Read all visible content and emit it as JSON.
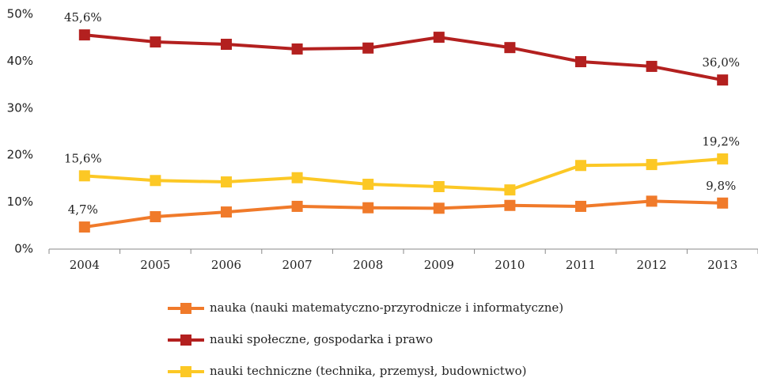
{
  "chart_data": {
    "type": "line",
    "categories": [
      "2004",
      "2005",
      "2006",
      "2007",
      "2008",
      "2009",
      "2010",
      "2011",
      "2012",
      "2013"
    ],
    "series": [
      {
        "name": "nauka (nauki matematyczno-przyrodnicze i informatyczne)",
        "color": "#f07a2a",
        "values": [
          4.7,
          6.9,
          7.9,
          9.1,
          8.8,
          8.7,
          9.3,
          9.1,
          10.2,
          9.8
        ],
        "value_labels": [
          "4,7%",
          null,
          null,
          null,
          null,
          null,
          null,
          null,
          null,
          "9,8%"
        ]
      },
      {
        "name": "nauki społeczne, gospodarka i prawo",
        "color": "#b3201f",
        "values": [
          45.6,
          44.1,
          43.6,
          42.6,
          42.8,
          45.1,
          42.9,
          39.9,
          38.9,
          36.0
        ],
        "value_labels": [
          "45,6%",
          null,
          null,
          null,
          null,
          null,
          null,
          null,
          null,
          "36,0%"
        ]
      },
      {
        "name": "nauki techniczne (technika, przemysł, budownictwo)",
        "color": "#fcc825",
        "values": [
          15.6,
          14.6,
          14.3,
          15.2,
          13.8,
          13.3,
          12.6,
          17.8,
          18.0,
          19.2
        ],
        "value_labels": [
          "15,6%",
          null,
          null,
          null,
          null,
          null,
          null,
          null,
          null,
          "19,2%"
        ]
      }
    ],
    "ylim": [
      0,
      50
    ],
    "yticks": [
      {
        "value": 0,
        "label": "0%"
      },
      {
        "value": 10,
        "label": "10%"
      },
      {
        "value": 20,
        "label": "20%"
      },
      {
        "value": 30,
        "label": "30%"
      },
      {
        "value": 40,
        "label": "40%"
      },
      {
        "value": 50,
        "label": "50%"
      }
    ],
    "grid": false,
    "legend": "bottom"
  }
}
